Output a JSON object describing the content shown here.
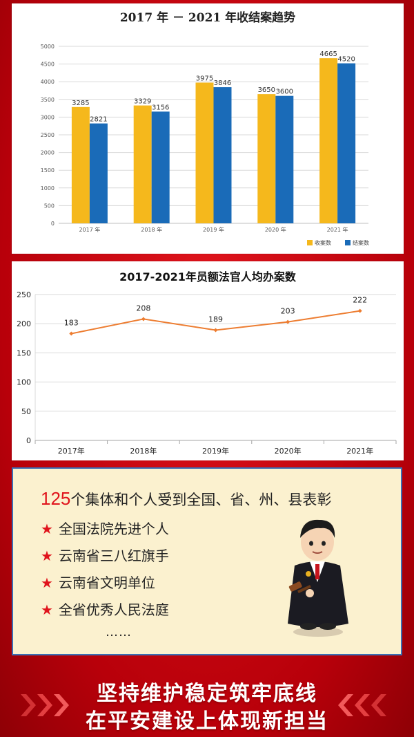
{
  "chart_data": [
    {
      "type": "bar",
      "title": "2017 年 － 2021 年收结案趋势",
      "categories": [
        "2017 年",
        "2018 年",
        "2019 年",
        "2020 年",
        "2021 年"
      ],
      "series": [
        {
          "name": "收案数",
          "values": [
            3285,
            3329,
            3975,
            3650,
            4665
          ],
          "color": "#f5b81c"
        },
        {
          "name": "结案数",
          "values": [
            2821,
            3156,
            3846,
            3600,
            4520
          ],
          "color": "#1a6bb8"
        }
      ],
      "ylim": [
        0,
        5000
      ],
      "yticks": [
        "0",
        "500",
        "1000",
        "1500",
        "2000",
        "2500",
        "3000",
        "3500",
        "4000",
        "4500",
        "5000"
      ],
      "grid": true,
      "legend": "bottom-right"
    },
    {
      "type": "line",
      "title": "2017-2021年员额法官人均办案数",
      "categories": [
        "2017年",
        "2018年",
        "2019年",
        "2020年",
        "2021年"
      ],
      "series": [
        {
          "values": [
            183,
            208,
            189,
            203,
            222
          ],
          "color": "#ed7d31"
        }
      ],
      "ylim": [
        0,
        250
      ],
      "yticks": [
        "0",
        "50",
        "100",
        "150",
        "200",
        "250"
      ],
      "grid": true
    }
  ],
  "honors": {
    "count": "125",
    "headline_text": "个集体和个人受到全国、省、州、县表彰",
    "star": "★",
    "items": [
      "全国法院先进个人",
      "云南省三八红旗手",
      "云南省文明单位",
      "全省优秀人民法庭"
    ],
    "ellipsis": "……"
  },
  "slogan": {
    "line1": "坚持维护稳定筑牢底线",
    "line2": "在平安建设上体现新担当"
  }
}
